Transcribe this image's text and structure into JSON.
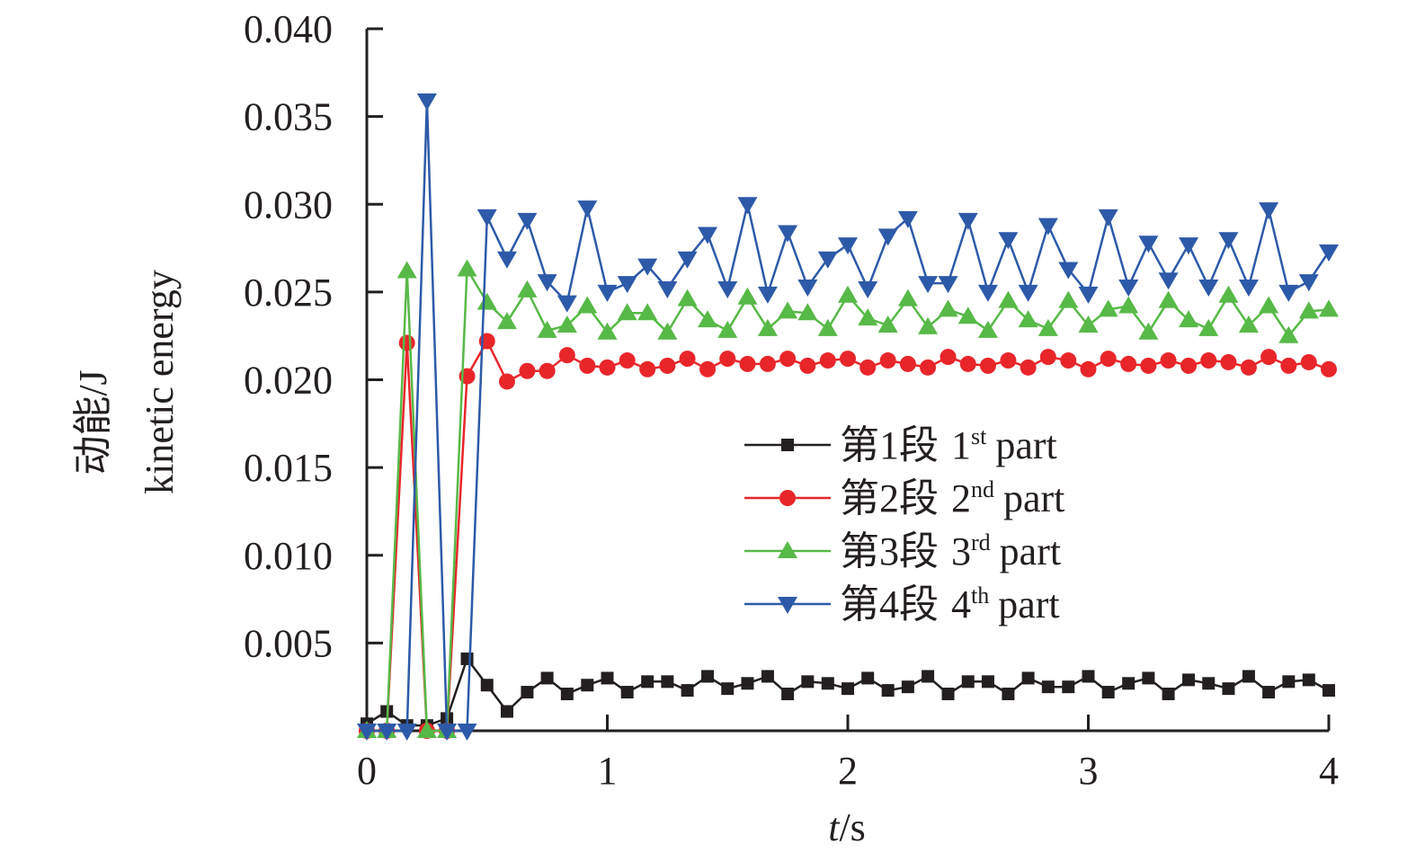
{
  "chart_data": {
    "type": "line",
    "xlabel": {
      "italic": "t",
      "rest": "/s"
    },
    "ylabel": {
      "line1": "动能/J",
      "line2": "kinetic energy"
    },
    "xlim": [
      0,
      4
    ],
    "ylim": [
      0,
      0.04
    ],
    "x_ticks": [
      "0",
      "1",
      "2",
      "3",
      "4"
    ],
    "y_ticks": [
      "0.005",
      "0.010",
      "0.015",
      "0.020",
      "0.025",
      "0.030",
      "0.035",
      "0.040"
    ],
    "grid": false,
    "legend_position": "center-right",
    "marker_x": [
      0,
      0.083,
      0.167,
      0.25,
      0.333,
      0.417,
      0.5,
      0.583,
      0.667,
      0.75,
      0.833,
      0.917,
      1.0,
      1.083,
      1.167,
      1.25,
      1.333,
      1.417,
      1.5,
      1.583,
      1.667,
      1.75,
      1.833,
      1.917,
      2.0,
      2.083,
      2.167,
      2.25,
      2.333,
      2.417,
      2.5,
      2.583,
      2.667,
      2.75,
      2.833,
      2.917,
      3.0,
      3.083,
      3.167,
      3.25,
      3.333,
      3.417,
      3.5,
      3.583,
      3.667,
      3.75,
      3.833,
      3.917,
      4.0
    ],
    "series": [
      {
        "label": "第1段",
        "ord": "1",
        "sup": "st",
        "suffix": "part",
        "color": "#231f20",
        "marker": "square",
        "values": [
          0.0004,
          0.0011,
          0.0003,
          0.0003,
          0.0007,
          0.0041,
          0.0026,
          0.0011,
          0.0022,
          0.003,
          0.0021,
          0.0026,
          0.003,
          0.0022,
          0.0028,
          0.0028,
          0.0023,
          0.0031,
          0.0024,
          0.0027,
          0.0031,
          0.0021,
          0.0028,
          0.0027,
          0.0024,
          0.003,
          0.0023,
          0.0025,
          0.0031,
          0.0021,
          0.0028,
          0.0028,
          0.0021,
          0.003,
          0.0025,
          0.0025,
          0.0031,
          0.0022,
          0.0027,
          0.003,
          0.0021,
          0.0029,
          0.0027,
          0.0024,
          0.0031,
          0.0022,
          0.0028,
          0.0029,
          0.0023
        ]
      },
      {
        "label": "第2段",
        "ord": "2",
        "sup": "nd",
        "suffix": "part",
        "color": "#e8262a",
        "marker": "circle",
        "values": [
          0.0,
          0.0,
          0.0221,
          0.0,
          0.0,
          0.0202,
          0.0222,
          0.0199,
          0.0205,
          0.0205,
          0.0214,
          0.0208,
          0.0207,
          0.0211,
          0.0206,
          0.0208,
          0.0212,
          0.0206,
          0.0212,
          0.0209,
          0.0209,
          0.0212,
          0.0208,
          0.0211,
          0.0212,
          0.0207,
          0.0211,
          0.0209,
          0.0207,
          0.0213,
          0.0209,
          0.0208,
          0.0211,
          0.0207,
          0.0213,
          0.0211,
          0.0206,
          0.0212,
          0.0209,
          0.0208,
          0.0211,
          0.0208,
          0.0211,
          0.021,
          0.0207,
          0.0213,
          0.0208,
          0.021,
          0.0206
        ]
      },
      {
        "label": "第3段",
        "ord": "3",
        "sup": "rd",
        "suffix": "part",
        "color": "#57b947",
        "marker": "triangle-up",
        "values": [
          0.0,
          0.0,
          0.0262,
          0.0,
          0.0,
          0.0263,
          0.0244,
          0.0233,
          0.0251,
          0.0228,
          0.0231,
          0.0242,
          0.0227,
          0.0238,
          0.0238,
          0.0227,
          0.0246,
          0.0234,
          0.0228,
          0.0247,
          0.0229,
          0.0239,
          0.0238,
          0.0229,
          0.0248,
          0.0235,
          0.0231,
          0.0246,
          0.023,
          0.024,
          0.0236,
          0.0228,
          0.0245,
          0.0234,
          0.0229,
          0.0245,
          0.0231,
          0.024,
          0.0242,
          0.0227,
          0.0245,
          0.0234,
          0.0229,
          0.0248,
          0.0231,
          0.0242,
          0.0225,
          0.0239,
          0.024
        ]
      },
      {
        "label": "第4段",
        "ord": "4",
        "sup": "th",
        "suffix": "part",
        "color": "#2d5aa8",
        "marker": "triangle-down",
        "values": [
          0.0,
          0.0,
          0.0,
          0.0359,
          0.0,
          0.0,
          0.0293,
          0.0269,
          0.0291,
          0.0256,
          0.0244,
          0.0298,
          0.025,
          0.0255,
          0.0265,
          0.0252,
          0.0269,
          0.0283,
          0.0252,
          0.03,
          0.0249,
          0.0284,
          0.0253,
          0.0269,
          0.0277,
          0.0252,
          0.0282,
          0.0292,
          0.0255,
          0.0255,
          0.0291,
          0.025,
          0.028,
          0.025,
          0.0288,
          0.0263,
          0.0249,
          0.0293,
          0.0253,
          0.0278,
          0.0257,
          0.0277,
          0.0253,
          0.028,
          0.0253,
          0.0297,
          0.025,
          0.0256,
          0.0273
        ]
      }
    ]
  }
}
